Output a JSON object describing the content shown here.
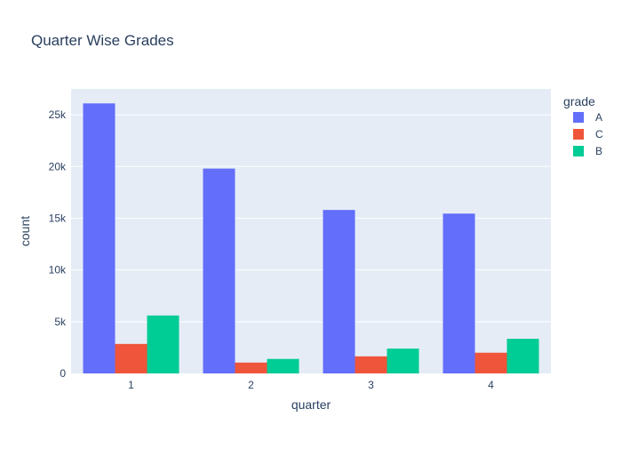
{
  "chart_data": {
    "type": "bar",
    "title": "Quarter Wise Grades",
    "xlabel": "quarter",
    "ylabel": "count",
    "categories": [
      "1",
      "2",
      "3",
      "4"
    ],
    "series": [
      {
        "name": "A",
        "color": "#636efa",
        "values": [
          26100,
          19800,
          15800,
          15450
        ]
      },
      {
        "name": "C",
        "color": "#ef553b",
        "values": [
          2850,
          1050,
          1650,
          2000
        ]
      },
      {
        "name": "B",
        "color": "#00cc96",
        "values": [
          5600,
          1400,
          2400,
          3350
        ]
      }
    ],
    "ylim": [
      0,
      27500
    ],
    "yticks": [
      0,
      5000,
      10000,
      15000,
      20000,
      25000
    ],
    "ytick_labels": [
      "0",
      "5k",
      "10k",
      "15k",
      "20k",
      "25k"
    ],
    "legend_title": "grade",
    "legend_position": "top-right",
    "grid": true,
    "plot_background": "#e5ecf6"
  }
}
